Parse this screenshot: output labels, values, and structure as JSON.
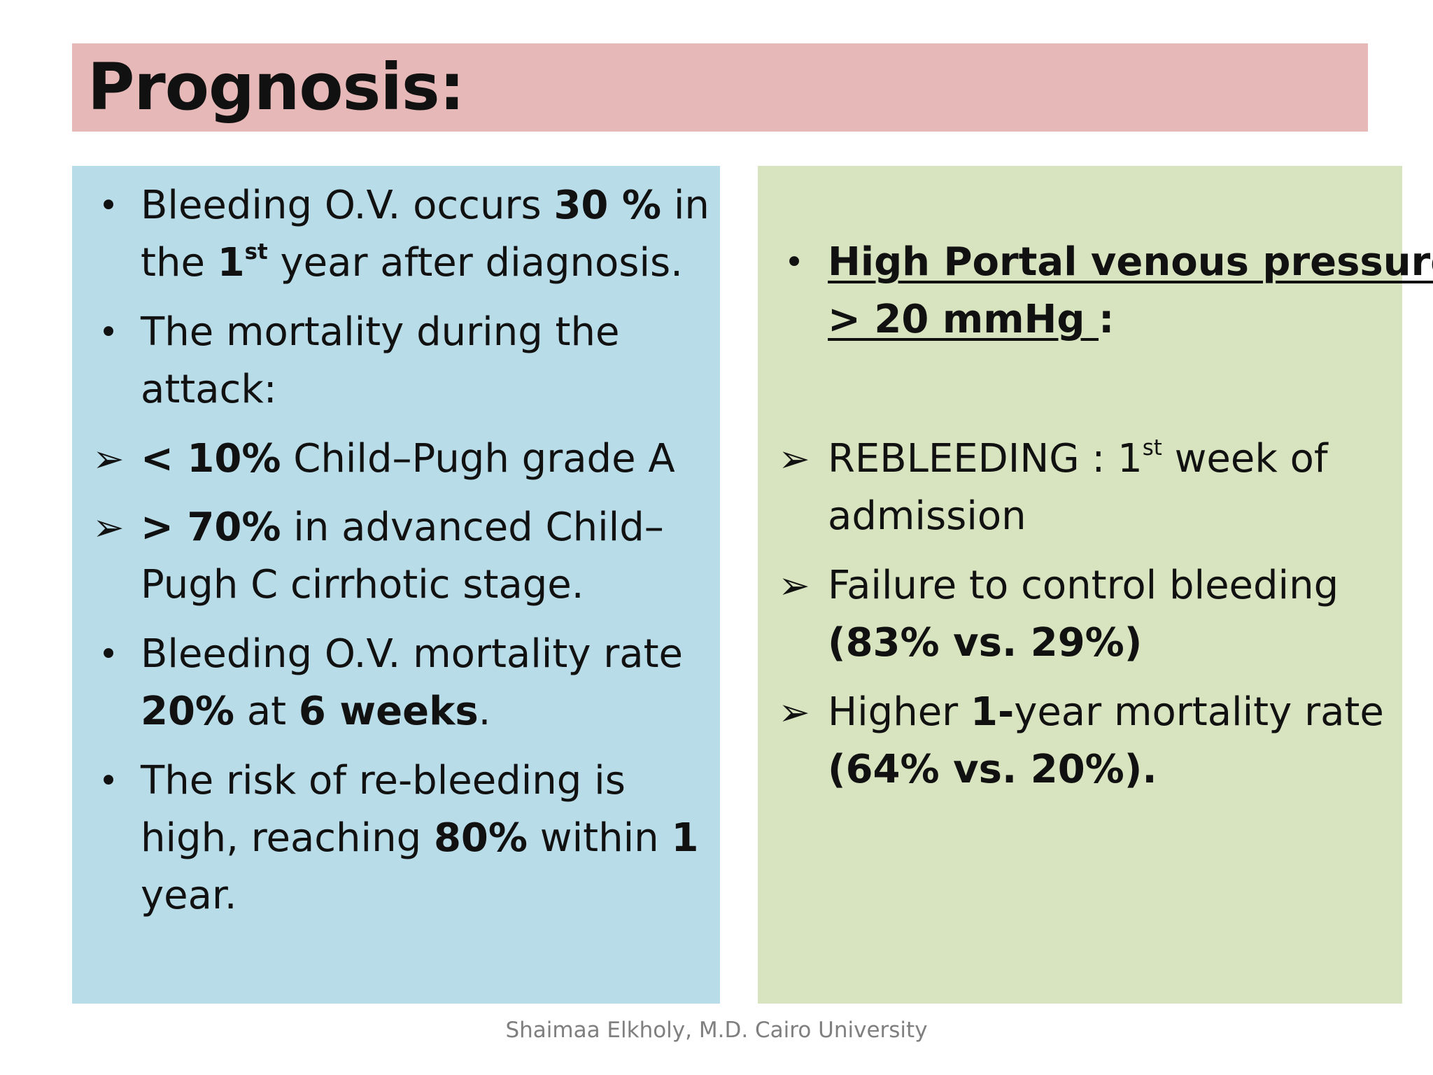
{
  "slide": {
    "title": "Prognosis:",
    "footer": "Shaimaa Elkholy, M.D. Cairo University"
  },
  "left": {
    "item1": {
      "l1a": "Bleeding O.V. occurs ",
      "l1b": "30 %",
      "l1c": " in",
      "l2a": "the ",
      "l2b": "1",
      "l2sup": "st",
      "l2c": "  year after diagnosis."
    },
    "item2": {
      "l1": "The mortality during the",
      "l2": "attack:"
    },
    "item3": {
      "b": " < 10%",
      "t": " Child–Pugh grade A"
    },
    "item4": {
      "b": "> 70%",
      "t": " in advanced Child–",
      "l2": "Pugh C cirrhotic stage."
    },
    "item5": {
      "l1": "Bleeding O.V.  mortality rate",
      "l2a": "20%",
      "l2b": " at ",
      "l2c": "6 weeks",
      "l2d": "."
    },
    "item6": {
      "l1": "The risk of re-bleeding is",
      "l2a": "high, reaching ",
      "l2b": "80%",
      "l2c": " within ",
      "l2d": "1",
      "l3": "year."
    }
  },
  "right": {
    "item1": {
      "l1": "High Portal venous pressure",
      "l2": "> 20 mmHg ",
      "l2b": ":"
    },
    "item2": {
      "l1a": "REBLEEDING : 1",
      "l1sup": "st",
      "l1b": " week of",
      "l2": "admission"
    },
    "item3": {
      "l1": "Failure to control bleeding",
      "l2": "(83% vs. 29%)"
    },
    "item4": {
      "l1a": "Higher ",
      "l1b": "1-",
      "l1c": "year mortality rate",
      "l2": "(64% vs. 20%)."
    }
  },
  "icons": {
    "bullet": "•",
    "arrow": "➢"
  },
  "colors": {
    "title_bar": "#e6b8b7",
    "left_panel": "#b8dce8",
    "right_panel": "#d8e4bf",
    "footer_text": "#7f7f7f"
  }
}
